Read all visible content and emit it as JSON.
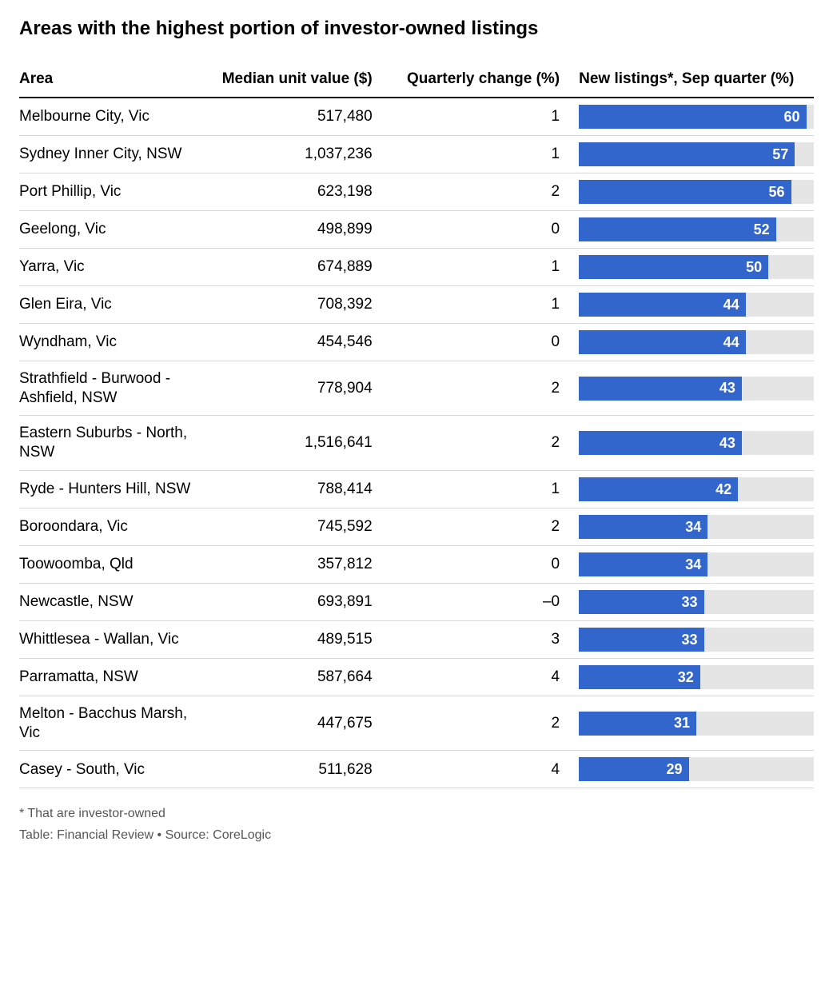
{
  "title": "Areas with the highest portion of investor-owned listings",
  "columns": {
    "area": "Area",
    "median": "Median unit value ($)",
    "change": "Quarterly change (%)",
    "bar": "New listings*, Sep quarter (%)"
  },
  "bar": {
    "max": 62,
    "fill_color": "#3366cc",
    "track_color": "#e5e5e5",
    "label_color": "#ffffff"
  },
  "rows": [
    {
      "area": "Melbourne City, Vic",
      "median": "517,480",
      "change": "1",
      "pct": 60
    },
    {
      "area": "Sydney Inner City, NSW",
      "median": "1,037,236",
      "change": "1",
      "pct": 57
    },
    {
      "area": "Port Phillip, Vic",
      "median": "623,198",
      "change": "2",
      "pct": 56
    },
    {
      "area": "Geelong, Vic",
      "median": "498,899",
      "change": "0",
      "pct": 52
    },
    {
      "area": "Yarra, Vic",
      "median": "674,889",
      "change": "1",
      "pct": 50
    },
    {
      "area": "Glen Eira, Vic",
      "median": "708,392",
      "change": "1",
      "pct": 44
    },
    {
      "area": "Wyndham, Vic",
      "median": "454,546",
      "change": "0",
      "pct": 44
    },
    {
      "area": "Strathfield - Burwood - Ashfield, NSW",
      "median": "778,904",
      "change": "2",
      "pct": 43
    },
    {
      "area": "Eastern Suburbs - North, NSW",
      "median": "1,516,641",
      "change": "2",
      "pct": 43
    },
    {
      "area": "Ryde - Hunters Hill, NSW",
      "median": "788,414",
      "change": "1",
      "pct": 42
    },
    {
      "area": "Boroondara, Vic",
      "median": "745,592",
      "change": "2",
      "pct": 34
    },
    {
      "area": "Toowoomba, Qld",
      "median": "357,812",
      "change": "0",
      "pct": 34
    },
    {
      "area": "Newcastle, NSW",
      "median": "693,891",
      "change": "–0",
      "pct": 33
    },
    {
      "area": "Whittlesea - Wallan, Vic",
      "median": "489,515",
      "change": "3",
      "pct": 33
    },
    {
      "area": "Parramatta, NSW",
      "median": "587,664",
      "change": "4",
      "pct": 32
    },
    {
      "area": "Melton - Bacchus Marsh, Vic",
      "median": "447,675",
      "change": "2",
      "pct": 31
    },
    {
      "area": "Casey - South, Vic",
      "median": "511,628",
      "change": "4",
      "pct": 29
    }
  ],
  "footnote": "* That are investor-owned",
  "credit": "Table: Financial Review • Source: CoreLogic"
}
